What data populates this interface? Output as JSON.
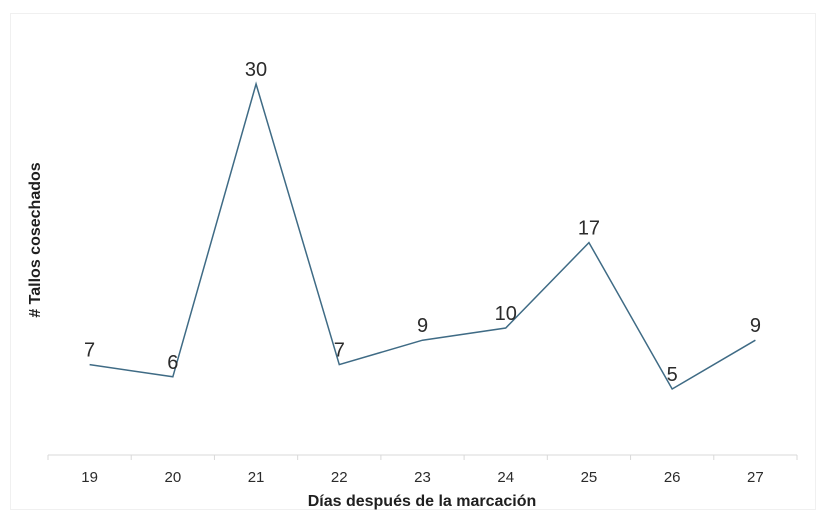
{
  "chart_data": {
    "type": "line",
    "categories": [
      "19",
      "20",
      "21",
      "22",
      "23",
      "24",
      "25",
      "26",
      "27"
    ],
    "series": [
      {
        "values": [
          7,
          6,
          30,
          7,
          9,
          10,
          17,
          5,
          9
        ],
        "color": "#3f6b85"
      }
    ],
    "data_labels": [
      "7",
      "6",
      "30",
      "7",
      "9",
      "10",
      "17",
      "5",
      "9"
    ],
    "title": "",
    "xlabel": "Días después de la marcación",
    "ylabel": "# Tallos cosechados",
    "ylim": [
      0,
      31
    ],
    "grid": false,
    "legend": "none"
  }
}
